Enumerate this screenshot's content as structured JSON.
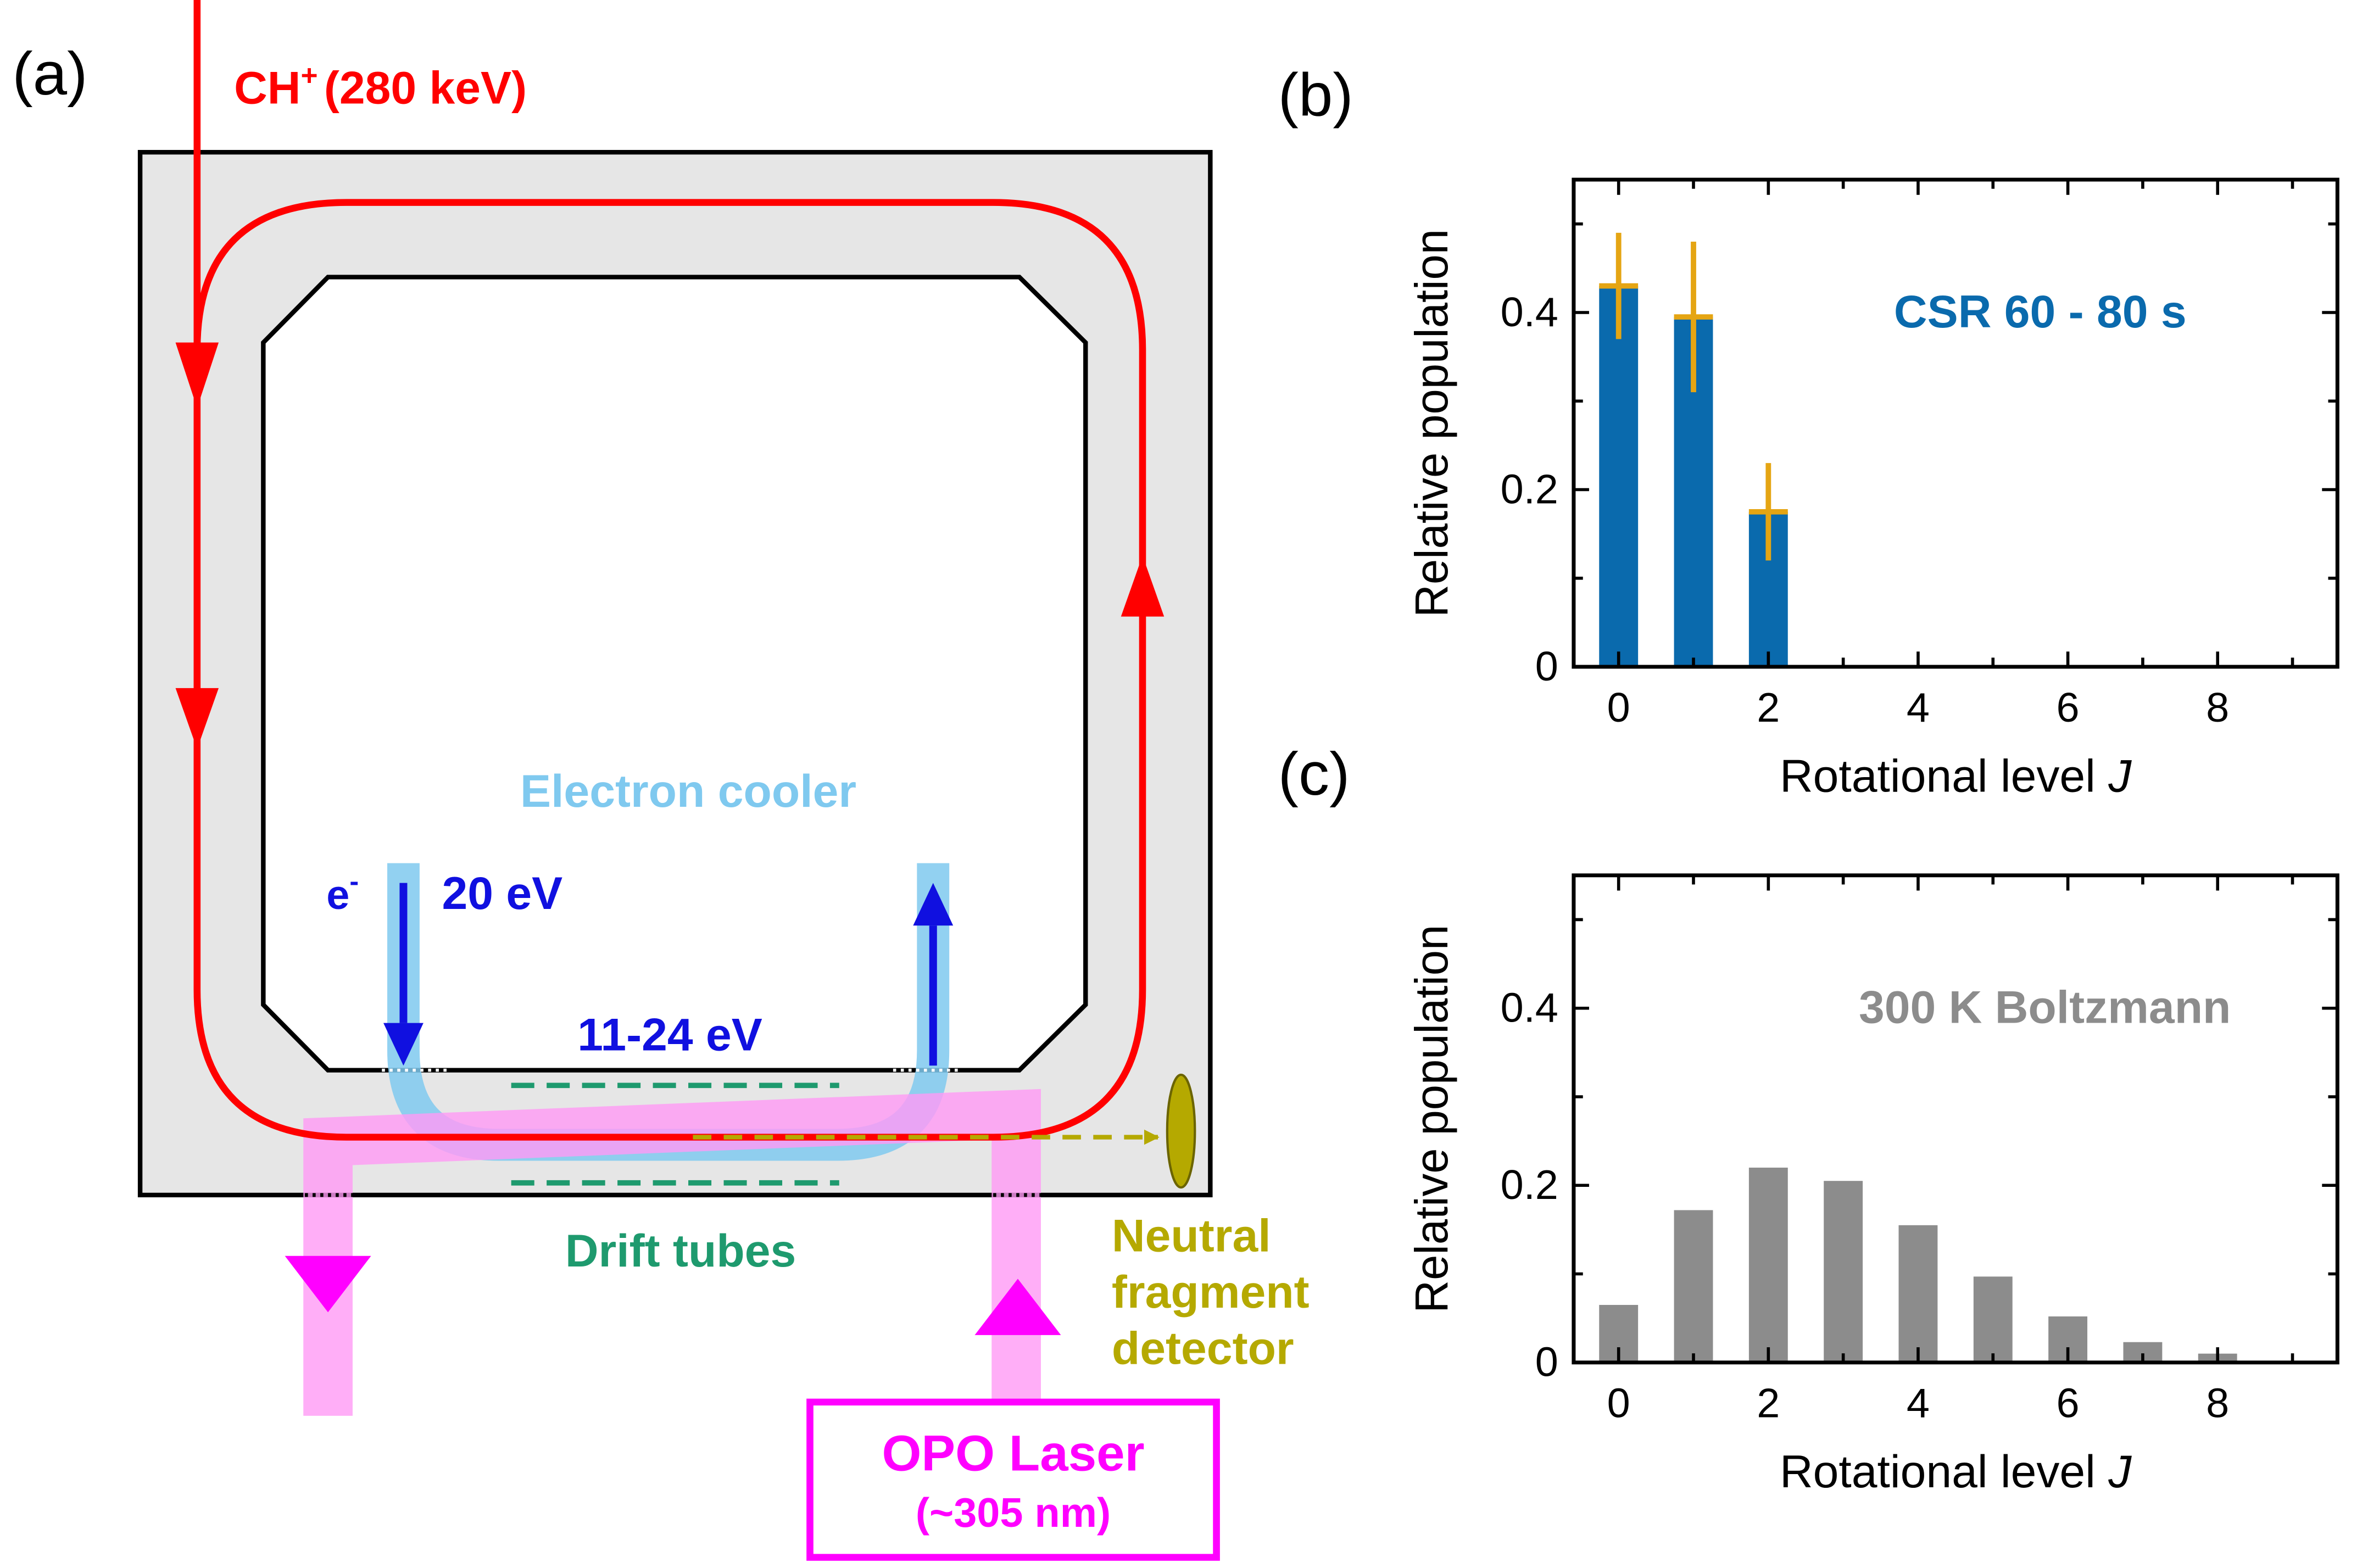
{
  "panel_a": {
    "label": "(a)",
    "ion_beam": {
      "species": "CH",
      "charge": "+",
      "energy": "(280 keV)",
      "color": "#ff0000"
    },
    "electron_cooler": {
      "label": "Electron cooler",
      "electron_symbol": "e",
      "electron_charge": "-",
      "energy_in": "20 eV",
      "energy_interaction": "11-24 eV",
      "color": "#7fc9ef",
      "arrow_color": "#1010e0"
    },
    "drift_tubes": {
      "label": "Drift tubes",
      "color": "#1e9a6e"
    },
    "detector": {
      "line1": "Neutral",
      "line2": "fragment",
      "line3": "detector",
      "color": "#b5a900"
    },
    "laser": {
      "line1": "OPO Laser",
      "line2": "(~305 nm)",
      "color": "#ff00ff",
      "beam_color": "#ff9af5"
    }
  },
  "chart_data": [
    {
      "panel_label": "(b)",
      "type": "bar",
      "title": "",
      "annotation": "CSR 60 - 80 s",
      "annotation_color": "#0a6aad",
      "xlabel": "Rotational level",
      "xlabel_var": "J",
      "ylabel": "Relative population",
      "xlim": [
        -0.6,
        9.6
      ],
      "ylim": [
        0,
        0.55
      ],
      "x_ticks": [
        0,
        2,
        4,
        6,
        8
      ],
      "y_ticks": [
        0,
        0.2,
        0.4
      ],
      "y_tick_labels": [
        "0",
        "0.2",
        "0.4"
      ],
      "bar_color": "#0a6aad",
      "error_color": "#e5a513",
      "series": [
        {
          "x": [
            0,
            1,
            2
          ],
          "values": [
            0.43,
            0.395,
            0.175
          ],
          "errors": [
            0.06,
            0.085,
            0.055
          ]
        }
      ]
    },
    {
      "panel_label": "(c)",
      "type": "bar",
      "title": "",
      "annotation": "300 K Boltzmann",
      "annotation_color": "#8c8c8c",
      "xlabel": "Rotational level",
      "xlabel_var": "J",
      "ylabel": "Relative population",
      "xlim": [
        -0.6,
        9.6
      ],
      "ylim": [
        0,
        0.55
      ],
      "x_ticks": [
        0,
        2,
        4,
        6,
        8
      ],
      "y_ticks": [
        0,
        0.2,
        0.4
      ],
      "y_tick_labels": [
        "0",
        "0.2",
        "0.4"
      ],
      "bar_color": "#8c8c8c",
      "series": [
        {
          "x": [
            0,
            1,
            2,
            3,
            4,
            5,
            6,
            7,
            8
          ],
          "values": [
            0.065,
            0.172,
            0.22,
            0.205,
            0.155,
            0.097,
            0.052,
            0.023,
            0.01
          ]
        }
      ]
    }
  ]
}
